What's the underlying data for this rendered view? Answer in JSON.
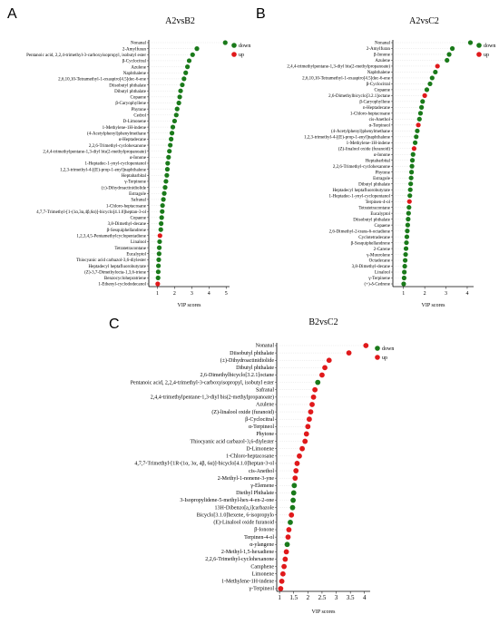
{
  "chart_data": [
    {
      "panel": "A",
      "type": "scatter",
      "title": "A2vsB2",
      "xlabel": "VIP scores",
      "xlim": [
        0.5,
        5.2
      ],
      "xticks": [
        1,
        2,
        3,
        4,
        5
      ],
      "legend": [
        {
          "label": "down",
          "color": "#1a7a1a"
        },
        {
          "label": "up",
          "color": "#e0191b"
        }
      ],
      "legend_position": "top-right",
      "points": [
        {
          "label": "Nonanal",
          "x": 4.95,
          "group": "down"
        },
        {
          "label": "2-Amylfuran",
          "x": 3.3,
          "group": "down"
        },
        {
          "label": "Pentanoic acid, 2,2,4-trimethyl-3-carboxyisopropyl, isobutyl ester",
          "x": 3.05,
          "group": "down"
        },
        {
          "label": "β-Cyclocitral",
          "x": 2.85,
          "group": "down"
        },
        {
          "label": "Azulene",
          "x": 2.75,
          "group": "down"
        },
        {
          "label": "Naphthalene",
          "x": 2.65,
          "group": "down"
        },
        {
          "label": "2,6,10,10-Tetramethyl-1-oxaspiro[4.5]dec-6-ene",
          "x": 2.55,
          "group": "down"
        },
        {
          "label": "Diisobutyl phthalate",
          "x": 2.45,
          "group": "down"
        },
        {
          "label": "Dibutyl phthalate",
          "x": 2.35,
          "group": "down"
        },
        {
          "label": "Copaene",
          "x": 2.3,
          "group": "down"
        },
        {
          "label": "β-Caryophyllene",
          "x": 2.25,
          "group": "down"
        },
        {
          "label": "Phytone",
          "x": 2.15,
          "group": "down"
        },
        {
          "label": "Cedrol",
          "x": 2.1,
          "group": "down"
        },
        {
          "label": "D-Limonene",
          "x": 2.0,
          "group": "down"
        },
        {
          "label": "1-Methylene-1H-indene",
          "x": 1.9,
          "group": "down"
        },
        {
          "label": "(4-Acetylphenyl)phenylmethane",
          "x": 1.85,
          "group": "down"
        },
        {
          "label": "α-Heptadecane",
          "x": 1.8,
          "group": "down"
        },
        {
          "label": "2,2,6-Trimethyl-cyclohexanone",
          "x": 1.75,
          "group": "down"
        },
        {
          "label": "2,4,4-trimethylpentane-1,3-diyl bis(2-methylpropanoate)",
          "x": 1.7,
          "group": "down"
        },
        {
          "label": "α-Ionone",
          "x": 1.65,
          "group": "down"
        },
        {
          "label": "1-Heptadec-1-ynyl-cyclopentanol",
          "x": 1.6,
          "group": "down"
        },
        {
          "label": "1,2,3-trimethyl-4-[(E)-prop-1-enyl]naphthalene",
          "x": 1.58,
          "group": "down"
        },
        {
          "label": "Heptabarbital",
          "x": 1.55,
          "group": "down"
        },
        {
          "label": "γ-Terpinene",
          "x": 1.5,
          "group": "down"
        },
        {
          "label": "(±)-Dihydroactinidiolide",
          "x": 1.45,
          "group": "down"
        },
        {
          "label": "Estragole",
          "x": 1.4,
          "group": "down"
        },
        {
          "label": "Safranal",
          "x": 1.35,
          "group": "down"
        },
        {
          "label": "1-Chloro-heptacosane",
          "x": 1.3,
          "group": "down"
        },
        {
          "label": "4,7,7-Trimethyl-[1-(1α,3α,4β,6α)]-bicyclo[4.1.0]heptan-3-ol",
          "x": 1.28,
          "group": "down"
        },
        {
          "label": "Copaene",
          "x": 1.25,
          "group": "down"
        },
        {
          "label": "3,8-Dimethyl-decane",
          "x": 1.22,
          "group": "down"
        },
        {
          "label": "β-Sesquiphellandrene",
          "x": 1.2,
          "group": "down"
        },
        {
          "label": "1,2,3,4,5-Pentamethylcyclopentadiene",
          "x": 1.15,
          "group": "up"
        },
        {
          "label": "Linalool",
          "x": 1.13,
          "group": "down"
        },
        {
          "label": "Tetratetracontane",
          "x": 1.11,
          "group": "down"
        },
        {
          "label": "Eucalyptol",
          "x": 1.1,
          "group": "down"
        },
        {
          "label": "Thiocyanic acid carbazol-3,6-diylester",
          "x": 1.08,
          "group": "down"
        },
        {
          "label": "Heptadecyl heptafluorobutyrate",
          "x": 1.06,
          "group": "down"
        },
        {
          "label": "(Z)-3,7-Dimethylocta-1,3,6-triene",
          "x": 1.05,
          "group": "down"
        },
        {
          "label": "Benzocyclohepratriene",
          "x": 1.04,
          "group": "down"
        },
        {
          "label": "1-Ethenyl-cyclododecanol",
          "x": 1.02,
          "group": "up"
        }
      ]
    },
    {
      "panel": "B",
      "type": "scatter",
      "title": "A2vsC2",
      "xlabel": "VIP scores",
      "xlim": [
        0.5,
        4.3
      ],
      "xticks": [
        1,
        2,
        3,
        4
      ],
      "legend": [
        {
          "label": "down",
          "color": "#1a7a1a"
        },
        {
          "label": "up",
          "color": "#e0191b"
        }
      ],
      "legend_position": "top-right",
      "points": [
        {
          "label": "Nonanal",
          "x": 4.15,
          "group": "down"
        },
        {
          "label": "2-Amylfuran",
          "x": 3.3,
          "group": "down"
        },
        {
          "label": "β-Ionone",
          "x": 3.15,
          "group": "down"
        },
        {
          "label": "Azulene",
          "x": 3.05,
          "group": "down"
        },
        {
          "label": "2,4,4-trimethylpentane-1,3-diyl bis(2-methylpropanoate)",
          "x": 2.6,
          "group": "up"
        },
        {
          "label": "Naphthalene",
          "x": 2.5,
          "group": "down"
        },
        {
          "label": "2,6,10,10-Tetramethyl-1-oxaspiro[4.5]dec-6-ene",
          "x": 2.35,
          "group": "down"
        },
        {
          "label": "β-Cyclocitral",
          "x": 2.25,
          "group": "down"
        },
        {
          "label": "Copaene",
          "x": 2.1,
          "group": "down"
        },
        {
          "label": "2,6-Dimethylbicyclo[3.2.1]octane",
          "x": 2.0,
          "group": "up"
        },
        {
          "label": "β-Caryophyllene",
          "x": 1.9,
          "group": "down"
        },
        {
          "label": "n-Heptadecane",
          "x": 1.85,
          "group": "down"
        },
        {
          "label": "1-Chloro-heptacosane",
          "x": 1.8,
          "group": "down"
        },
        {
          "label": "cis-Anethol",
          "x": 1.75,
          "group": "down"
        },
        {
          "label": "α-Terpineol",
          "x": 1.7,
          "group": "up"
        },
        {
          "label": "(4-Acetylphenyl)phenylmethane",
          "x": 1.65,
          "group": "down"
        },
        {
          "label": "1,2,3-trimethyl-4-[(E)-prop-1-enyl]naphthalene",
          "x": 1.6,
          "group": "down"
        },
        {
          "label": "1-Methylene-1H-indene",
          "x": 1.55,
          "group": "down"
        },
        {
          "label": "(Z)-linalool oxide (furanoid)",
          "x": 1.5,
          "group": "up"
        },
        {
          "label": "α-Ionone",
          "x": 1.45,
          "group": "down"
        },
        {
          "label": "Heptabarbital",
          "x": 1.42,
          "group": "down"
        },
        {
          "label": "2,2,6-Trimethyl-cyclohexanone",
          "x": 1.4,
          "group": "down"
        },
        {
          "label": "Phytone",
          "x": 1.38,
          "group": "down"
        },
        {
          "label": "Estragole",
          "x": 1.36,
          "group": "down"
        },
        {
          "label": "Dibutyl phthalate",
          "x": 1.34,
          "group": "down"
        },
        {
          "label": "Heptadecyl heptafluorobutyrate",
          "x": 1.32,
          "group": "down"
        },
        {
          "label": "1-Heptadec-1-ynyl-cyclopentanol",
          "x": 1.3,
          "group": "down"
        },
        {
          "label": "Terpinen-4-ol",
          "x": 1.28,
          "group": "up"
        },
        {
          "label": "Tetratetracontane",
          "x": 1.26,
          "group": "down"
        },
        {
          "label": "Eucalyptol",
          "x": 1.24,
          "group": "down"
        },
        {
          "label": "Diisobutyl phthalate",
          "x": 1.22,
          "group": "down"
        },
        {
          "label": "Copaene",
          "x": 1.2,
          "group": "down"
        },
        {
          "label": "2,6-Dimethyl-2-trans-6-octadiene",
          "x": 1.18,
          "group": "down"
        },
        {
          "label": "Cyclotetradecane",
          "x": 1.16,
          "group": "down"
        },
        {
          "label": "β-Sesquiphellandrene",
          "x": 1.14,
          "group": "down"
        },
        {
          "label": "2-Carene",
          "x": 1.12,
          "group": "down"
        },
        {
          "label": "γ-Muurolene",
          "x": 1.1,
          "group": "down"
        },
        {
          "label": "Octadecane",
          "x": 1.08,
          "group": "down"
        },
        {
          "label": "3,8-Dimethyl-decane",
          "x": 1.06,
          "group": "down"
        },
        {
          "label": "Linalool",
          "x": 1.04,
          "group": "down"
        },
        {
          "label": "γ-Terpinene",
          "x": 1.03,
          "group": "down"
        },
        {
          "label": "(+)-δ-Cedrene",
          "x": 1.01,
          "group": "down"
        }
      ]
    },
    {
      "panel": "C",
      "type": "scatter",
      "title": "B2vsC2",
      "xlabel": "VIP scores",
      "xlim": [
        0.9,
        4.2
      ],
      "xticks": [
        1,
        1.5,
        2,
        2.5,
        3,
        3.5,
        4
      ],
      "legend": [
        {
          "label": "down",
          "color": "#1a7a1a"
        },
        {
          "label": "up",
          "color": "#e0191b"
        }
      ],
      "legend_position": "top-right",
      "points": [
        {
          "label": "Nonanal",
          "x": 4.05,
          "group": "up"
        },
        {
          "label": "Diisobutyl phthalate",
          "x": 3.45,
          "group": "up"
        },
        {
          "label": "(±)-Dihydroactinidiolide",
          "x": 2.75,
          "group": "up"
        },
        {
          "label": "Dibutyl phthalate",
          "x": 2.6,
          "group": "up"
        },
        {
          "label": "2,6-Dimethylbicyclo[3.2.1]octane",
          "x": 2.5,
          "group": "up"
        },
        {
          "label": "Pentanoic acid, 2,2,4-trimethyl-3-carboxyisopropyl, isobutyl ester",
          "x": 2.35,
          "group": "down"
        },
        {
          "label": "Safranal",
          "x": 2.25,
          "group": "up"
        },
        {
          "label": "2,4,4-trimethylpentane-1,3-diyl bis(2-methylpropanoate)",
          "x": 2.2,
          "group": "up"
        },
        {
          "label": "Azulene",
          "x": 2.15,
          "group": "up"
        },
        {
          "label": "(Z)-linalool oxide (furanoid)",
          "x": 2.1,
          "group": "up"
        },
        {
          "label": "β-Cyclocitral",
          "x": 2.05,
          "group": "up"
        },
        {
          "label": "α-Terpineol",
          "x": 2.0,
          "group": "up"
        },
        {
          "label": "Phytone",
          "x": 1.95,
          "group": "up"
        },
        {
          "label": "Thiocyanic acid carbazol-3,6-diylester",
          "x": 1.9,
          "group": "up"
        },
        {
          "label": "D-Limonene",
          "x": 1.8,
          "group": "up"
        },
        {
          "label": "1-Chloro-heptacosane",
          "x": 1.7,
          "group": "up"
        },
        {
          "label": "4,7,7-Trimethyl-[1R-(1α, 3α, 4β, 6α)]-bicyclo[4.1.0]heptan-3-ol",
          "x": 1.62,
          "group": "up"
        },
        {
          "label": "cis-Anethol",
          "x": 1.58,
          "group": "up"
        },
        {
          "label": "2-Methyl-1-nonene-3-yne",
          "x": 1.55,
          "group": "up"
        },
        {
          "label": "γ-Elemene",
          "x": 1.52,
          "group": "down"
        },
        {
          "label": "Diethyl Phthalate",
          "x": 1.5,
          "group": "down"
        },
        {
          "label": "3-Isopropylidene-5-methyl-hex-4-en-2-one",
          "x": 1.48,
          "group": "down"
        },
        {
          "label": "13H-Dibenzo[a,i]carbazole",
          "x": 1.46,
          "group": "down"
        },
        {
          "label": "Bicyclo[3.1.0]hexene, 6-isopropylo",
          "x": 1.42,
          "group": "up"
        },
        {
          "label": "(E)-Linalool oxide furanoid",
          "x": 1.38,
          "group": "down"
        },
        {
          "label": "β-Ionone",
          "x": 1.33,
          "group": "up"
        },
        {
          "label": "Terpinen-4-ol",
          "x": 1.3,
          "group": "up"
        },
        {
          "label": "α-ylangene",
          "x": 1.27,
          "group": "down"
        },
        {
          "label": "2-Methyl-1,5-hexadiene",
          "x": 1.24,
          "group": "up"
        },
        {
          "label": "2,2,6-Trimethyl-cyclohexanone",
          "x": 1.2,
          "group": "up"
        },
        {
          "label": "Camphene",
          "x": 1.16,
          "group": "up"
        },
        {
          "label": "Limonene",
          "x": 1.12,
          "group": "up"
        },
        {
          "label": "1-Methylene-1H-indene",
          "x": 1.08,
          "group": "up"
        },
        {
          "label": "γ-Terpineol",
          "x": 1.04,
          "group": "up"
        }
      ]
    }
  ]
}
